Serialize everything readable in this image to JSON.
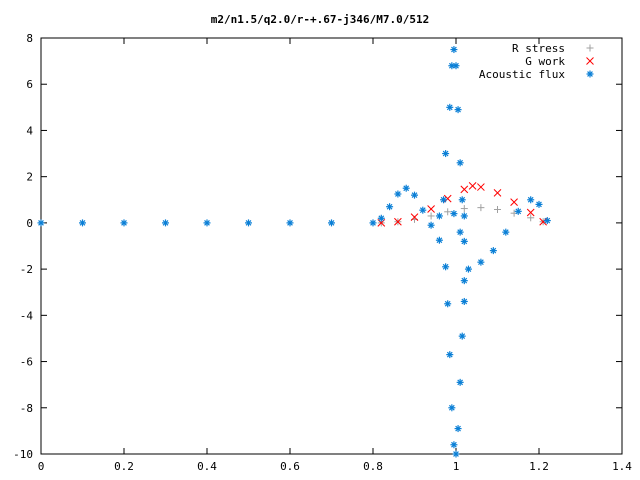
{
  "chart_data": {
    "type": "scatter",
    "title": "m2/n1.5/q2.0/r-+.67-j346/M7.0/512",
    "xlim": [
      0,
      1.4
    ],
    "ylim": [
      -10,
      8
    ],
    "xticks": [
      "0",
      "0.2",
      "0.4",
      "0.6",
      "0.8",
      "1",
      "1.2",
      "1.4"
    ],
    "yticks": [
      "8",
      "6",
      "4",
      "2",
      "0",
      "-2",
      "-4",
      "-6",
      "-8",
      "-10"
    ],
    "grid": false,
    "legend_position": "top-right",
    "series": [
      {
        "name": "R stress",
        "marker": "+",
        "color": "#a0a0a0",
        "points": [
          [
            0.82,
            0.0
          ],
          [
            0.86,
            0.05
          ],
          [
            0.9,
            0.15
          ],
          [
            0.94,
            0.3
          ],
          [
            0.98,
            0.48
          ],
          [
            1.02,
            0.62
          ],
          [
            1.06,
            0.66
          ],
          [
            1.1,
            0.58
          ],
          [
            1.14,
            0.42
          ],
          [
            1.18,
            0.22
          ],
          [
            1.21,
            0.05
          ]
        ]
      },
      {
        "name": "G work",
        "marker": "x",
        "color": "#ff0000",
        "points": [
          [
            0.82,
            0.0
          ],
          [
            0.86,
            0.05
          ],
          [
            0.9,
            0.25
          ],
          [
            0.94,
            0.6
          ],
          [
            0.98,
            1.05
          ],
          [
            1.02,
            1.45
          ],
          [
            1.04,
            1.6
          ],
          [
            1.06,
            1.55
          ],
          [
            1.1,
            1.3
          ],
          [
            1.14,
            0.9
          ],
          [
            1.18,
            0.45
          ],
          [
            1.21,
            0.05
          ]
        ]
      },
      {
        "name": "Acoustic flux",
        "marker": "*",
        "color": "#0a7fd6",
        "points": [
          [
            0.0,
            0.0
          ],
          [
            0.1,
            0.0
          ],
          [
            0.2,
            0.0
          ],
          [
            0.3,
            0.0
          ],
          [
            0.4,
            0.0
          ],
          [
            0.5,
            0.0
          ],
          [
            0.6,
            0.0
          ],
          [
            0.7,
            0.0
          ],
          [
            0.8,
            0.0
          ],
          [
            0.82,
            0.2
          ],
          [
            0.84,
            0.7
          ],
          [
            0.86,
            1.25
          ],
          [
            0.88,
            1.5
          ],
          [
            0.9,
            1.2
          ],
          [
            0.92,
            0.55
          ],
          [
            0.94,
            -0.1
          ],
          [
            0.96,
            -0.75
          ],
          [
            0.975,
            -1.9
          ],
          [
            0.98,
            -3.5
          ],
          [
            0.985,
            -5.7
          ],
          [
            0.99,
            -8.0
          ],
          [
            0.995,
            -9.6
          ],
          [
            1.0,
            -10.0
          ],
          [
            1.005,
            -8.9
          ],
          [
            1.01,
            -6.9
          ],
          [
            1.015,
            -4.9
          ],
          [
            1.02,
            -3.4
          ],
          [
            1.03,
            -2.0
          ],
          [
            1.06,
            -1.7
          ],
          [
            1.09,
            -1.2
          ],
          [
            1.12,
            -0.4
          ],
          [
            1.15,
            0.5
          ],
          [
            1.18,
            1.0
          ],
          [
            1.2,
            0.8
          ],
          [
            1.22,
            0.1
          ],
          [
            0.975,
            3.0
          ],
          [
            0.985,
            5.0
          ],
          [
            0.99,
            6.8
          ],
          [
            0.995,
            7.5
          ],
          [
            1.0,
            6.8
          ],
          [
            1.005,
            4.9
          ],
          [
            1.01,
            2.6
          ],
          [
            1.015,
            1.0
          ],
          [
            1.02,
            0.3
          ],
          [
            1.01,
            -0.4
          ],
          [
            1.02,
            -0.8
          ],
          [
            1.02,
            -2.5
          ],
          [
            0.96,
            0.3
          ],
          [
            0.97,
            1.0
          ],
          [
            0.995,
            0.4
          ]
        ]
      }
    ]
  }
}
